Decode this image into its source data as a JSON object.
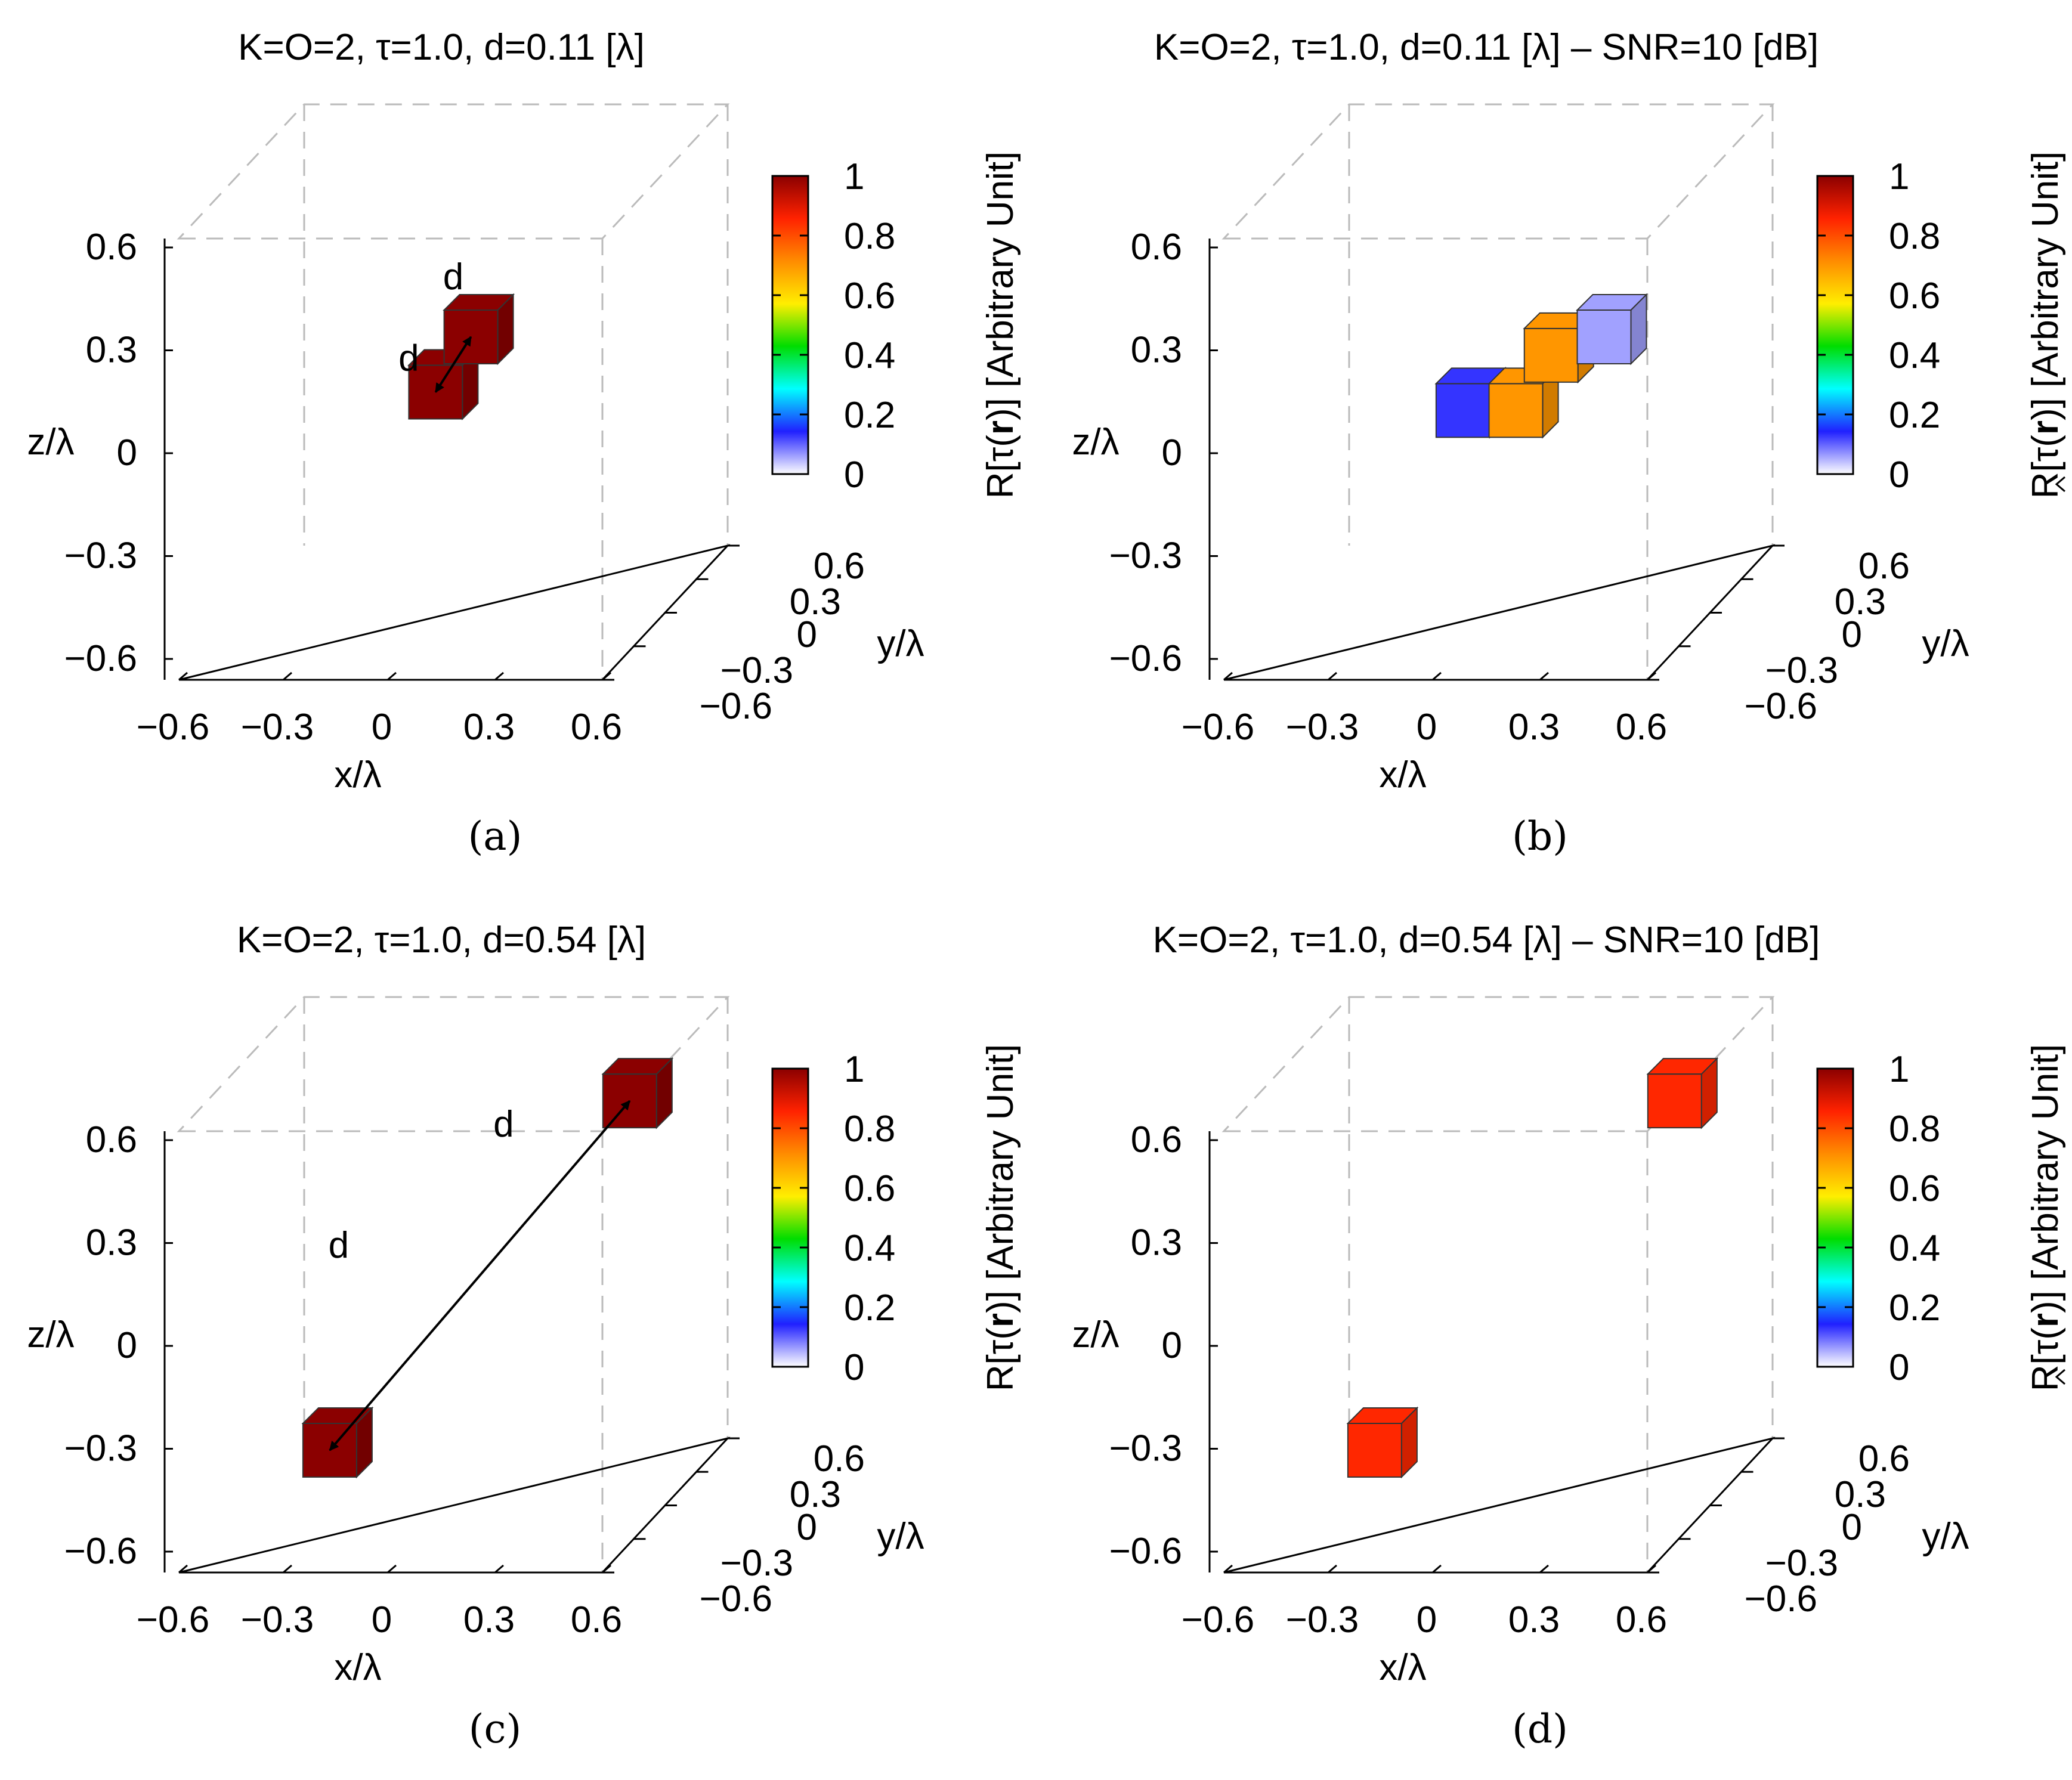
{
  "figure": {
    "colors": {
      "colormap": [
        "#ffffff",
        "#2020ff",
        "#00ffff",
        "#00dd00",
        "#ffee00",
        "#ff8c00",
        "#ff2200",
        "#8b0000"
      ],
      "box_dash": "#bbbbbb",
      "axis": "#000000"
    }
  },
  "chart_data": [
    {
      "panel": "a",
      "panel_label": "(a)",
      "type": "3d-voxel",
      "title": "K=O=2, τ=1.0, d=0.11 [λ]",
      "xlabel": "x/λ",
      "ylabel": "y/λ",
      "zlabel": "z/λ",
      "x_ticks": [
        "−0.6",
        "−0.3",
        "0",
        "0.3",
        "0.6"
      ],
      "y_ticks": [
        "−0.6",
        "−0.3",
        "0",
        "0.3",
        "0.6"
      ],
      "z_ticks": [
        "−0.6",
        "−0.3",
        "0",
        "0.3",
        "0.6"
      ],
      "xlim": [
        -0.6,
        0.6
      ],
      "ylim": [
        -0.6,
        0.6
      ],
      "zlim": [
        -0.6,
        0.6
      ],
      "colorbar": {
        "label": "R[τ(r)] [Arbitrary Unit]",
        "label_pre": "R[τ(",
        "label_bold": "r",
        "label_post": ")] [Arbitrary Unit]",
        "hat": false,
        "range": [
          0,
          1
        ],
        "ticks": [
          "0",
          "0.2",
          "0.4",
          "0.6",
          "0.8",
          "1"
        ]
      },
      "voxels": [
        {
          "x": -0.05,
          "y": 0.0,
          "z": 0.0,
          "value": 1.0
        },
        {
          "x": 0.05,
          "y": 0.0,
          "z": 0.15,
          "value": 1.0
        }
      ],
      "annotations": [
        {
          "text": "d"
        },
        {
          "text": "d"
        }
      ]
    },
    {
      "panel": "b",
      "panel_label": "(b)",
      "type": "3d-voxel",
      "title": "K=O=2, τ=1.0, d=0.11 [λ] – SNR=10 [dB]",
      "xlabel": "x/λ",
      "ylabel": "y/λ",
      "zlabel": "z/λ",
      "x_ticks": [
        "−0.6",
        "−0.3",
        "0",
        "0.3",
        "0.6"
      ],
      "y_ticks": [
        "−0.6",
        "−0.3",
        "0",
        "0.3",
        "0.6"
      ],
      "z_ticks": [
        "−0.6",
        "−0.3",
        "0",
        "0.3",
        "0.6"
      ],
      "xlim": [
        -0.6,
        0.6
      ],
      "ylim": [
        -0.6,
        0.6
      ],
      "zlim": [
        -0.6,
        0.6
      ],
      "colorbar": {
        "label": "R[τ̂(r)] [Arbitrary Unit]",
        "label_pre": "R[τ(",
        "label_bold": "r",
        "label_post": ")] [Arbitrary Unit]",
        "hat": true,
        "range": [
          0,
          1
        ],
        "ticks": [
          "0",
          "0.2",
          "0.4",
          "0.6",
          "0.8",
          "1"
        ]
      },
      "voxels": [
        {
          "x": -0.1,
          "y": 0.0,
          "z": -0.05,
          "value": 0.13
        },
        {
          "x": 0.05,
          "y": 0.0,
          "z": -0.05,
          "value": 0.7
        },
        {
          "x": 0.15,
          "y": 0.0,
          "z": 0.1,
          "value": 0.7
        },
        {
          "x": 0.3,
          "y": 0.0,
          "z": 0.15,
          "value": 0.06
        }
      ],
      "annotations": []
    },
    {
      "panel": "c",
      "panel_label": "(c)",
      "type": "3d-voxel",
      "title": "K=O=2, τ=1.0, d=0.54 [λ]",
      "xlabel": "x/λ",
      "ylabel": "y/λ",
      "zlabel": "z/λ",
      "x_ticks": [
        "−0.6",
        "−0.3",
        "0",
        "0.3",
        "0.6"
      ],
      "y_ticks": [
        "−0.6",
        "−0.3",
        "0",
        "0.3",
        "0.6"
      ],
      "z_ticks": [
        "−0.6",
        "−0.3",
        "0",
        "0.3",
        "0.6"
      ],
      "xlim": [
        -0.6,
        0.6
      ],
      "ylim": [
        -0.6,
        0.6
      ],
      "zlim": [
        -0.6,
        0.6
      ],
      "colorbar": {
        "label": "R[τ(r)] [Arbitrary Unit]",
        "label_pre": "R[τ(",
        "label_bold": "r",
        "label_post": ")] [Arbitrary Unit]",
        "hat": false,
        "range": [
          0,
          1
        ],
        "ticks": [
          "0",
          "0.2",
          "0.4",
          "0.6",
          "0.8",
          "1"
        ]
      },
      "voxels": [
        {
          "x": -0.35,
          "y": 0.0,
          "z": -0.45,
          "value": 1.0
        },
        {
          "x": 0.5,
          "y": 0.0,
          "z": 0.5,
          "value": 1.0
        }
      ],
      "annotations": [
        {
          "text": "d"
        },
        {
          "text": "d"
        }
      ]
    },
    {
      "panel": "d",
      "panel_label": "(d)",
      "type": "3d-voxel",
      "title": "K=O=2, τ=1.0, d=0.54 [λ] – SNR=10 [dB]",
      "xlabel": "x/λ",
      "ylabel": "y/λ",
      "zlabel": "z/λ",
      "x_ticks": [
        "−0.6",
        "−0.3",
        "0",
        "0.3",
        "0.6"
      ],
      "y_ticks": [
        "−0.6",
        "−0.3",
        "0",
        "0.3",
        "0.6"
      ],
      "z_ticks": [
        "−0.6",
        "−0.3",
        "0",
        "0.3",
        "0.6"
      ],
      "xlim": [
        -0.6,
        0.6
      ],
      "ylim": [
        -0.6,
        0.6
      ],
      "zlim": [
        -0.6,
        0.6
      ],
      "colorbar": {
        "label": "R[τ̂(r)] [Arbitrary Unit]",
        "label_pre": "R[τ(",
        "label_bold": "r",
        "label_post": ")] [Arbitrary Unit]",
        "hat": true,
        "range": [
          0,
          1
        ],
        "ticks": [
          "0",
          "0.2",
          "0.4",
          "0.6",
          "0.8",
          "1"
        ]
      },
      "voxels": [
        {
          "x": -0.35,
          "y": 0.0,
          "z": -0.45,
          "value": 0.85
        },
        {
          "x": 0.5,
          "y": 0.0,
          "z": 0.5,
          "value": 0.85
        }
      ],
      "annotations": []
    }
  ]
}
